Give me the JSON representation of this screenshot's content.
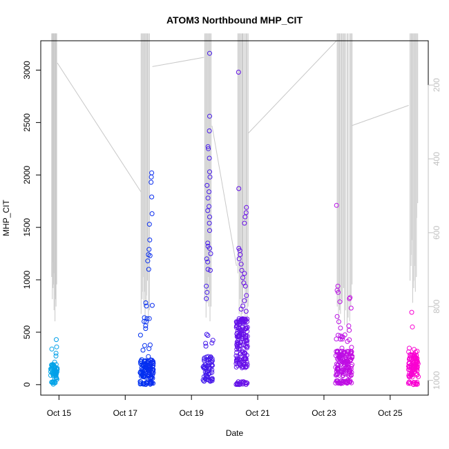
{
  "chart_data": {
    "type": "scatter",
    "title": "ATOM3 Northbound MHP_CIT",
    "xlabel": "Date",
    "ylabel": "MHP_CIT",
    "x_tick_labels": [
      "Oct 15",
      "Oct 17",
      "Oct 19",
      "Oct 21",
      "Oct 23",
      "Oct 25"
    ],
    "x_tick_days": [
      15,
      17,
      19,
      21,
      23,
      25
    ],
    "xlim_days": [
      14.45,
      26.15
    ],
    "y_ticks": [
      0,
      500,
      1000,
      1500,
      2000,
      2500,
      3000
    ],
    "ylim": [
      -100,
      3280
    ],
    "secondary_y_ticks": [
      200,
      400,
      600,
      800,
      1000
    ],
    "secondary_ylim": [
      1040,
      80
    ],
    "secondary_axis_reversed": true,
    "grid": false,
    "colors": {
      "axis": "#000000",
      "secondary_axis": "#c0c0c0",
      "depth_line": "#c8c8c8",
      "points_gradient": [
        "#00a8e8",
        "#0030f0",
        "#6010e8",
        "#b010e8",
        "#ff00d0"
      ]
    },
    "point_clusters": [
      {
        "day_start": 14.75,
        "day_end": 14.95,
        "n": 60,
        "low": 0,
        "mid": 120,
        "high": 430,
        "extra": [
          [
            14.92,
            430
          ],
          [
            14.93,
            360
          ],
          [
            14.91,
            300
          ]
        ]
      },
      {
        "day_start": 17.45,
        "day_end": 17.85,
        "n": 130,
        "low": 0,
        "mid": 150,
        "high": 780,
        "extra": [
          [
            17.8,
            2020
          ],
          [
            17.79,
            1980
          ],
          [
            17.78,
            1930
          ],
          [
            17.8,
            1790
          ],
          [
            17.81,
            1630
          ],
          [
            17.73,
            1530
          ],
          [
            17.74,
            1380
          ],
          [
            17.72,
            1290
          ],
          [
            17.7,
            1240
          ],
          [
            17.75,
            1230
          ],
          [
            17.68,
            1180
          ],
          [
            17.71,
            1100
          ],
          [
            17.62,
            780
          ],
          [
            17.64,
            750
          ],
          [
            17.66,
            630
          ],
          [
            17.63,
            600
          ]
        ]
      },
      {
        "day_start": 19.35,
        "day_end": 19.65,
        "n": 70,
        "low": 30,
        "mid": 170,
        "high": 480,
        "extra": [
          [
            19.55,
            3160
          ],
          [
            19.55,
            2560
          ],
          [
            19.54,
            2420
          ],
          [
            19.5,
            2270
          ],
          [
            19.51,
            2250
          ],
          [
            19.54,
            2160
          ],
          [
            19.55,
            2030
          ],
          [
            19.56,
            1980
          ],
          [
            19.47,
            1900
          ],
          [
            19.53,
            1840
          ],
          [
            19.5,
            1780
          ],
          [
            19.53,
            1700
          ],
          [
            19.49,
            1660
          ],
          [
            19.55,
            1600
          ],
          [
            19.54,
            1540
          ],
          [
            19.55,
            1470
          ],
          [
            19.49,
            1350
          ],
          [
            19.5,
            1320
          ],
          [
            19.55,
            1300
          ],
          [
            19.58,
            1250
          ],
          [
            19.46,
            1200
          ],
          [
            19.49,
            1170
          ],
          [
            19.5,
            1100
          ],
          [
            19.57,
            1090
          ],
          [
            19.45,
            940
          ],
          [
            19.47,
            880
          ],
          [
            19.45,
            820
          ],
          [
            19.46,
            480
          ]
        ]
      },
      {
        "day_start": 20.35,
        "day_end": 20.7,
        "n": 170,
        "low": 0,
        "mid": 400,
        "high": 650,
        "extra": [
          [
            20.42,
            2980
          ],
          [
            20.43,
            1870
          ],
          [
            20.66,
            1690
          ],
          [
            20.65,
            1640
          ],
          [
            20.62,
            1600
          ],
          [
            20.6,
            1540
          ],
          [
            20.43,
            1300
          ],
          [
            20.46,
            1280
          ],
          [
            20.47,
            1240
          ],
          [
            20.44,
            1200
          ],
          [
            20.5,
            1150
          ],
          [
            20.52,
            1090
          ],
          [
            20.6,
            1060
          ],
          [
            20.55,
            1020
          ],
          [
            20.58,
            970
          ],
          [
            20.63,
            940
          ],
          [
            20.66,
            850
          ],
          [
            20.6,
            800
          ],
          [
            20.55,
            750
          ],
          [
            20.5,
            720
          ],
          [
            20.65,
            700
          ]
        ]
      },
      {
        "day_start": 23.35,
        "day_end": 23.85,
        "n": 160,
        "low": 10,
        "mid": 200,
        "high": 520,
        "extra": [
          [
            23.38,
            1710
          ],
          [
            23.42,
            940
          ],
          [
            23.4,
            900
          ],
          [
            23.43,
            880
          ],
          [
            23.79,
            830
          ],
          [
            23.77,
            820
          ],
          [
            23.48,
            790
          ],
          [
            23.82,
            730
          ],
          [
            23.4,
            650
          ],
          [
            23.45,
            600
          ],
          [
            23.75,
            560
          ],
          [
            23.5,
            540
          ]
        ]
      },
      {
        "day_start": 25.55,
        "day_end": 25.85,
        "n": 110,
        "low": 0,
        "mid": 180,
        "high": 350,
        "extra": [
          [
            25.65,
            690
          ],
          [
            25.67,
            550
          ]
        ]
      }
    ],
    "secondary_line_segments": [
      {
        "day_start": 14.73,
        "day_end": 15.0,
        "spikes": [
          [
            14.78,
            60,
            720
          ],
          [
            14.8,
            60,
            780
          ],
          [
            14.82,
            60,
            750
          ],
          [
            14.85,
            60,
            810
          ],
          [
            14.88,
            60,
            840
          ],
          [
            14.9,
            60,
            780
          ]
        ]
      },
      {
        "day_start": 17.45,
        "day_end": 17.85,
        "spikes": [
          [
            17.48,
            60,
            820
          ],
          [
            17.52,
            60,
            760
          ],
          [
            17.56,
            60,
            800
          ],
          [
            17.6,
            60,
            830
          ],
          [
            17.64,
            60,
            770
          ],
          [
            17.7,
            60,
            850
          ]
        ]
      },
      {
        "day_start": 19.35,
        "day_end": 19.65,
        "spikes": [
          [
            19.4,
            60,
            780
          ],
          [
            19.44,
            60,
            830
          ],
          [
            19.48,
            60,
            760
          ],
          [
            19.52,
            60,
            800
          ],
          [
            19.56,
            60,
            840
          ]
        ]
      },
      {
        "day_start": 20.35,
        "day_end": 20.75,
        "spikes": [
          [
            20.4,
            60,
            710
          ],
          [
            20.44,
            60,
            820
          ],
          [
            20.5,
            60,
            860
          ],
          [
            20.55,
            60,
            790
          ],
          [
            20.62,
            60,
            830
          ],
          [
            20.68,
            60,
            840
          ]
        ]
      },
      {
        "day_start": 23.35,
        "day_end": 23.85,
        "spikes": [
          [
            23.4,
            60,
            800
          ],
          [
            23.44,
            60,
            850
          ],
          [
            23.5,
            60,
            820
          ],
          [
            23.56,
            60,
            790
          ],
          [
            23.62,
            60,
            850
          ],
          [
            23.7,
            60,
            870
          ],
          [
            23.78,
            60,
            840
          ],
          [
            23.82,
            60,
            780
          ]
        ]
      },
      {
        "day_start": 25.55,
        "day_end": 25.85,
        "spikes": [
          [
            25.6,
            60,
            730
          ],
          [
            25.64,
            60,
            660
          ],
          [
            25.68,
            60,
            790
          ],
          [
            25.72,
            60,
            730
          ],
          [
            25.76,
            60,
            760
          ],
          [
            25.8,
            60,
            560
          ]
        ]
      }
    ],
    "secondary_connectors": [
      [
        [
          14.95,
          140
        ],
        [
          17.48,
          490
        ]
      ],
      [
        [
          17.82,
          150
        ],
        [
          19.38,
          125
        ]
      ],
      [
        [
          19.62,
          310
        ],
        [
          20.36,
          690
        ]
      ],
      [
        [
          20.72,
          330
        ],
        [
          23.38,
          80
        ]
      ],
      [
        [
          23.84,
          310
        ],
        [
          25.56,
          255
        ]
      ]
    ]
  }
}
